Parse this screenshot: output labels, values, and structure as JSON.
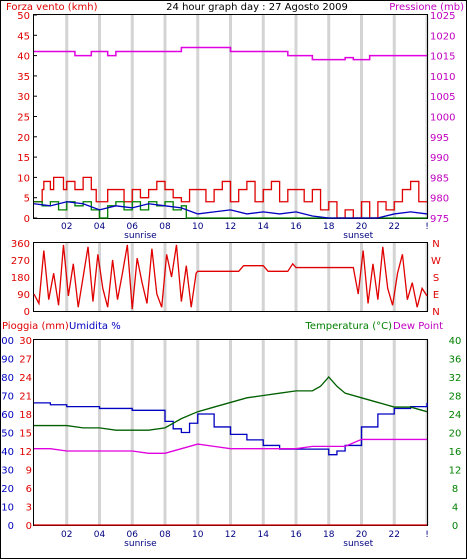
{
  "title": "24 hour graph day : 27 Agosto 2009",
  "chart_data": [
    {
      "type": "line",
      "left_axis_label": "Forza vento (kmh)",
      "right_axis_label": "Pressione (mb)",
      "left_ylim": [
        0,
        50
      ],
      "left_ticks": [
        "0",
        "5",
        "10",
        "15",
        "20",
        "25",
        "30",
        "35",
        "40",
        "45",
        "50"
      ],
      "right_ylim": [
        975,
        1025
      ],
      "right_ticks": [
        "975",
        "980",
        "985",
        "990",
        "995",
        "1000",
        "1005",
        "1010",
        "1015",
        "1020",
        "1025"
      ],
      "x_ticks": [
        "02",
        "04",
        "06",
        "08",
        "10",
        "12",
        "14",
        "16",
        "18",
        "20",
        "22",
        "!"
      ],
      "sunrise_label": "sunrise",
      "sunset_label": "sunset",
      "sunrise_hour": 6.5,
      "sunset_hour": 19.8,
      "grid": true,
      "series": [
        {
          "role": "gust",
          "color": "#e00000",
          "x": [
            0,
            0.5,
            0.6,
            1.0,
            1.2,
            1.8,
            2.0,
            2.5,
            3.0,
            3.5,
            3.8,
            4.5,
            5.0,
            5.5,
            6.0,
            6.5,
            7.0,
            7.5,
            8.0,
            8.5,
            9.0,
            9.5,
            10.0,
            10.5,
            11.0,
            11.5,
            12.0,
            12.5,
            13.0,
            13.5,
            14.0,
            14.5,
            15.0,
            15.5,
            16.0,
            16.5,
            17.0,
            17.5,
            18.0,
            18.5,
            19.0,
            19.5,
            20.0,
            20.5,
            21.0,
            21.5,
            22.0,
            22.5,
            23.0,
            23.5,
            24.0
          ],
          "values": [
            4,
            7,
            9,
            7,
            10,
            7,
            9,
            7,
            10,
            7,
            4,
            7,
            7,
            4,
            7,
            5,
            7,
            9,
            7,
            5,
            4,
            7,
            7,
            4,
            7,
            9,
            4,
            7,
            9,
            4,
            7,
            9,
            4,
            7,
            7,
            4,
            7,
            2,
            4,
            0,
            2,
            0,
            4,
            0,
            4,
            2,
            4,
            7,
            9,
            4,
            4
          ]
        },
        {
          "role": "wind",
          "color": "#008000",
          "x": [
            0,
            0.5,
            1.0,
            1.5,
            2.0,
            2.5,
            3.0,
            3.5,
            4.0,
            4.5,
            5.0,
            5.5,
            6.0,
            6.5,
            7.0,
            7.5,
            8.0,
            8.5,
            9.0,
            9.3,
            10.0,
            24.0
          ],
          "values": [
            4,
            3,
            4,
            2,
            4,
            3,
            4,
            2,
            0,
            3,
            4,
            2,
            4,
            2,
            4,
            3,
            4,
            2,
            3,
            0,
            0,
            0
          ]
        },
        {
          "role": "average",
          "color": "#0000c0",
          "x": [
            0,
            1,
            2,
            3,
            4,
            5,
            6,
            7,
            8,
            9,
            10,
            11,
            12,
            13,
            14,
            15,
            16,
            17,
            18,
            19,
            20,
            21,
            22,
            23,
            24
          ],
          "values": [
            3.5,
            3.0,
            4.0,
            3.5,
            2.0,
            3.0,
            2.5,
            3.5,
            3.0,
            2.5,
            1.0,
            1.5,
            2.0,
            1.0,
            1.5,
            1.0,
            1.5,
            0.5,
            0,
            0,
            0,
            0,
            1.0,
            1.5,
            1.0
          ]
        },
        {
          "role": "pressure",
          "axis": "right",
          "color": "#e000e0",
          "x": [
            0,
            2.0,
            2.5,
            3.0,
            3.5,
            4.5,
            5.0,
            6.5,
            7.0,
            8.0,
            9.0,
            11.0,
            12.0,
            15.5,
            17.0,
            18.5,
            19.0,
            19.5,
            20.0,
            20.5,
            21.0,
            24.0
          ],
          "values": [
            1016,
            1016,
            1015,
            1015,
            1016,
            1015,
            1016,
            1016,
            1016,
            1016,
            1017,
            1017,
            1016,
            1015,
            1014,
            1014,
            1014.5,
            1014,
            1014,
            1015,
            1015,
            1015
          ]
        }
      ]
    },
    {
      "type": "line",
      "ylim": [
        0,
        360
      ],
      "left_ticks": [
        "0",
        "90",
        "180",
        "270",
        "360"
      ],
      "right_ticks": [
        "N",
        "W",
        "S",
        "E",
        "N"
      ],
      "series": [
        {
          "role": "direction",
          "color": "#e00000",
          "x": [
            0,
            0.3,
            0.6,
            0.9,
            1.2,
            1.5,
            1.8,
            2.1,
            2.4,
            2.7,
            3.0,
            3.3,
            3.6,
            3.9,
            4.2,
            4.5,
            4.8,
            5.1,
            5.4,
            5.7,
            6.0,
            6.3,
            6.6,
            6.9,
            7.2,
            7.5,
            7.8,
            8.1,
            8.4,
            8.7,
            9.0,
            9.3,
            9.6,
            9.9,
            10.0,
            12.5,
            12.8,
            14.0,
            14.3,
            15.5,
            15.8,
            16.0,
            19.5,
            19.8,
            20.1,
            20.4,
            20.7,
            21.0,
            21.3,
            21.6,
            21.9,
            22.2,
            22.5,
            22.8,
            23.1,
            23.4,
            23.7,
            24.0
          ],
          "values": [
            90,
            40,
            320,
            60,
            200,
            30,
            350,
            80,
            250,
            20,
            180,
            340,
            50,
            300,
            120,
            20,
            270,
            60,
            200,
            350,
            10,
            280,
            150,
            40,
            330,
            90,
            20,
            300,
            180,
            350,
            50,
            240,
            20,
            200,
            210,
            210,
            240,
            240,
            210,
            210,
            250,
            230,
            230,
            90,
            320,
            40,
            250,
            60,
            340,
            120,
            30,
            200,
            300,
            60,
            150,
            20,
            120,
            80
          ]
        }
      ]
    },
    {
      "type": "line",
      "left_axis_label": "Pioggia (mm)",
      "humidity_label": "Umidita %",
      "right_axis_label": "Temperatura (°C)",
      "dewpoint_label": "Dew Point",
      "rain_ylim": [
        0,
        30
      ],
      "rain_ticks": [
        "0",
        "3",
        "6",
        "9",
        "12",
        "15",
        "18",
        "21",
        "24",
        "27",
        "30"
      ],
      "humidity_ylim": [
        0,
        100
      ],
      "humidity_ticks": [
        "0",
        "10",
        "20",
        "30",
        "40",
        "50",
        "60",
        "70",
        "80",
        "90",
        "100"
      ],
      "temp_ylim": [
        0,
        40
      ],
      "temp_ticks": [
        "0",
        "4",
        "8",
        "12",
        "16",
        "20",
        "24",
        "28",
        "32",
        "36",
        "40"
      ],
      "series": [
        {
          "role": "humidity",
          "axis": "humidity",
          "color": "#0000c0",
          "x": [
            0,
            1,
            2,
            3,
            4,
            5,
            6,
            7,
            8,
            8.5,
            9,
            9.5,
            10,
            11,
            12,
            13,
            14,
            15,
            16,
            17,
            18,
            18.5,
            19,
            20,
            21,
            22,
            23,
            24
          ],
          "values": [
            66,
            65,
            64,
            64,
            63,
            63,
            62,
            62,
            56,
            52,
            50,
            55,
            60,
            53,
            49,
            46,
            43,
            41,
            41,
            41,
            38,
            40,
            43,
            53,
            60,
            63,
            64,
            66
          ]
        },
        {
          "role": "temperature",
          "axis": "temp",
          "color": "#006000",
          "x": [
            0,
            1,
            2,
            3,
            4,
            5,
            6,
            7,
            8,
            9,
            10,
            11,
            12,
            13,
            14,
            15,
            16,
            17,
            17.5,
            18,
            18.5,
            19,
            20,
            21,
            22,
            23,
            24
          ],
          "values": [
            21.5,
            21.5,
            21.5,
            21,
            21,
            20.5,
            20.5,
            20.5,
            21,
            23,
            24.5,
            25.5,
            26.5,
            27.5,
            28,
            28.5,
            29,
            29,
            30,
            32,
            30,
            28.5,
            27.5,
            26.5,
            25.5,
            25.5,
            24.5
          ]
        },
        {
          "role": "dewpoint",
          "axis": "temp",
          "color": "#e000e0",
          "x": [
            0,
            1,
            2,
            3,
            4,
            5,
            6,
            7,
            8,
            9,
            10,
            11,
            12,
            13,
            14,
            15,
            16,
            17,
            18,
            19,
            20,
            21,
            22,
            23,
            24
          ],
          "values": [
            16.5,
            16.5,
            16,
            16,
            16,
            16,
            16,
            15.5,
            15.5,
            16.5,
            17.5,
            17,
            16.5,
            16.5,
            16.5,
            16.5,
            16.5,
            17,
            17,
            17,
            18.5,
            18.5,
            18.5,
            18.5,
            18.5
          ]
        },
        {
          "role": "rain",
          "axis": "rain",
          "color": "#e00000",
          "x": [
            0,
            24
          ],
          "values": [
            0,
            0
          ]
        }
      ]
    }
  ]
}
